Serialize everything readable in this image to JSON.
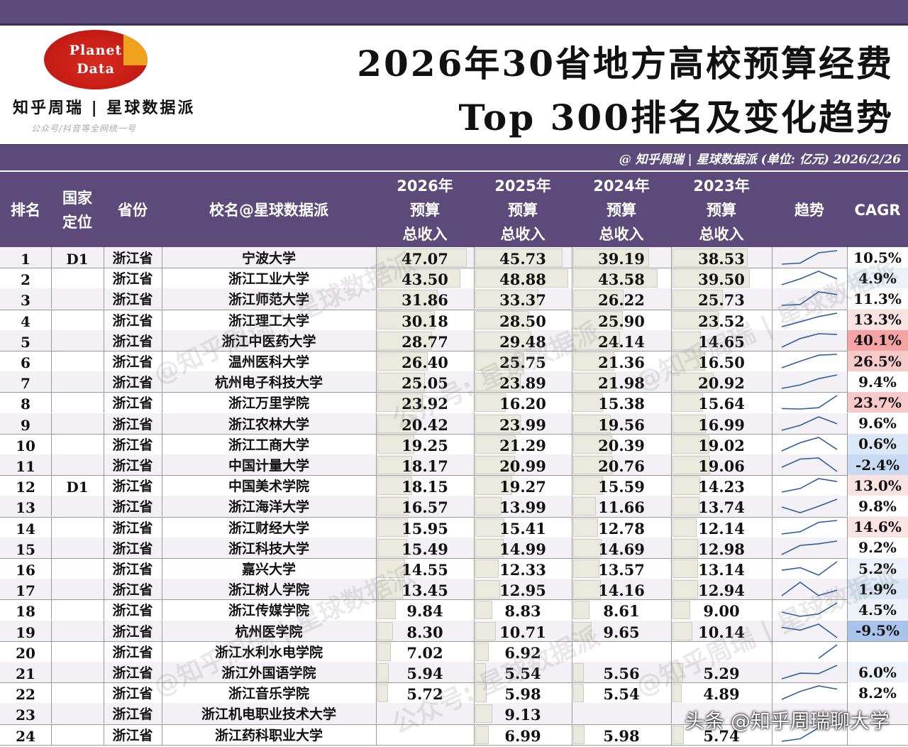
{
  "logo": {
    "line1": "Planet",
    "line2": "Data",
    "brand": "知乎周瑞 | 星球数据派",
    "brand_sub": "公众号/抖音等全网统一号"
  },
  "title": {
    "line1": "2026年30省地方高校预算经费",
    "line2": "Top 300排名及变化趋势"
  },
  "credit": "@ 知乎周瑞 | 星球数据派 (单位: 亿元) 2026/2/26",
  "headers": {
    "rank": "排名",
    "positioning": "国家\n定位",
    "province": "省份",
    "school": "校名@星球数据派",
    "y2026": "2026年\n预算\n总收入",
    "y2025": "2025年\n预算\n总收入",
    "y2024": "2024年\n预算\n总收入",
    "y2023": "2023年\n预算\n总收入",
    "trend": "趋势",
    "cagr": "CAGR"
  },
  "colors": {
    "header_bg": "#5b4a7a",
    "bar_fill": "#ebeadf",
    "spark_line": "#2f5f9e",
    "cagr_positive_strong": "#f7a6a6",
    "cagr_negative": "#a9c4ea"
  },
  "rows": [
    {
      "rank": "1",
      "pos": "D1",
      "prov": "浙江省",
      "school": "宁波大学",
      "v2026": "47.07",
      "v2025": "45.73",
      "v2024": "39.19",
      "v2023": "38.53",
      "cagr": "10.5%"
    },
    {
      "rank": "2",
      "pos": "",
      "prov": "浙江省",
      "school": "浙江工业大学",
      "v2026": "43.50",
      "v2025": "48.88",
      "v2024": "43.58",
      "v2023": "39.50",
      "cagr": "4.9%"
    },
    {
      "rank": "3",
      "pos": "",
      "prov": "浙江省",
      "school": "浙江师范大学",
      "v2026": "31.86",
      "v2025": "33.37",
      "v2024": "26.22",
      "v2023": "25.73",
      "cagr": "11.3%"
    },
    {
      "rank": "4",
      "pos": "",
      "prov": "浙江省",
      "school": "浙江理工大学",
      "v2026": "30.18",
      "v2025": "28.50",
      "v2024": "25.90",
      "v2023": "23.52",
      "cagr": "13.3%"
    },
    {
      "rank": "5",
      "pos": "",
      "prov": "浙江省",
      "school": "浙江中医药大学",
      "v2026": "28.77",
      "v2025": "29.48",
      "v2024": "24.14",
      "v2023": "14.65",
      "cagr": "40.1%"
    },
    {
      "rank": "6",
      "pos": "",
      "prov": "浙江省",
      "school": "温州医科大学",
      "v2026": "26.40",
      "v2025": "25.75",
      "v2024": "21.36",
      "v2023": "16.50",
      "cagr": "26.5%"
    },
    {
      "rank": "7",
      "pos": "",
      "prov": "浙江省",
      "school": "杭州电子科技大学",
      "v2026": "25.05",
      "v2025": "23.89",
      "v2024": "21.98",
      "v2023": "20.92",
      "cagr": "9.4%"
    },
    {
      "rank": "8",
      "pos": "",
      "prov": "浙江省",
      "school": "浙江万里学院",
      "v2026": "23.92",
      "v2025": "16.20",
      "v2024": "15.38",
      "v2023": "15.64",
      "cagr": "23.7%"
    },
    {
      "rank": "9",
      "pos": "",
      "prov": "浙江省",
      "school": "浙江农林大学",
      "v2026": "20.42",
      "v2025": "23.99",
      "v2024": "19.56",
      "v2023": "16.99",
      "cagr": "9.6%"
    },
    {
      "rank": "10",
      "pos": "",
      "prov": "浙江省",
      "school": "浙江工商大学",
      "v2026": "19.25",
      "v2025": "21.29",
      "v2024": "20.39",
      "v2023": "19.02",
      "cagr": "0.6%"
    },
    {
      "rank": "11",
      "pos": "",
      "prov": "浙江省",
      "school": "中国计量大学",
      "v2026": "18.17",
      "v2025": "20.99",
      "v2024": "20.76",
      "v2023": "19.06",
      "cagr": "-2.4%"
    },
    {
      "rank": "12",
      "pos": "D1",
      "prov": "浙江省",
      "school": "中国美术学院",
      "v2026": "18.15",
      "v2025": "19.27",
      "v2024": "15.59",
      "v2023": "14.23",
      "cagr": "13.0%"
    },
    {
      "rank": "13",
      "pos": "",
      "prov": "浙江省",
      "school": "浙江海洋大学",
      "v2026": "16.57",
      "v2025": "13.99",
      "v2024": "11.66",
      "v2023": "13.74",
      "cagr": "9.8%"
    },
    {
      "rank": "14",
      "pos": "",
      "prov": "浙江省",
      "school": "浙江财经大学",
      "v2026": "15.95",
      "v2025": "15.41",
      "v2024": "12.78",
      "v2023": "12.14",
      "cagr": "14.6%"
    },
    {
      "rank": "15",
      "pos": "",
      "prov": "浙江省",
      "school": "浙江科技大学",
      "v2026": "15.49",
      "v2025": "14.99",
      "v2024": "14.69",
      "v2023": "12.98",
      "cagr": "9.2%"
    },
    {
      "rank": "16",
      "pos": "",
      "prov": "浙江省",
      "school": "嘉兴大学",
      "v2026": "14.55",
      "v2025": "12.33",
      "v2024": "13.57",
      "v2023": "13.14",
      "cagr": "5.2%"
    },
    {
      "rank": "17",
      "pos": "",
      "prov": "浙江省",
      "school": "浙江树人学院",
      "v2026": "13.45",
      "v2025": "12.95",
      "v2024": "14.16",
      "v2023": "12.94",
      "cagr": "1.9%"
    },
    {
      "rank": "18",
      "pos": "",
      "prov": "浙江省",
      "school": "浙江传媒学院",
      "v2026": "9.84",
      "v2025": "8.83",
      "v2024": "8.61",
      "v2023": "9.00",
      "cagr": "4.5%"
    },
    {
      "rank": "19",
      "pos": "",
      "prov": "浙江省",
      "school": "杭州医学院",
      "v2026": "8.30",
      "v2025": "10.71",
      "v2024": "9.65",
      "v2023": "10.14",
      "cagr": "-9.5%"
    },
    {
      "rank": "20",
      "pos": "",
      "prov": "浙江省",
      "school": "浙江水利水电学院",
      "v2026": "7.02",
      "v2025": "6.92",
      "v2024": "",
      "v2023": "",
      "cagr": ""
    },
    {
      "rank": "21",
      "pos": "",
      "prov": "浙江省",
      "school": "浙江外国语学院",
      "v2026": "5.94",
      "v2025": "5.54",
      "v2024": "5.56",
      "v2023": "5.29",
      "cagr": "6.0%"
    },
    {
      "rank": "22",
      "pos": "",
      "prov": "浙江省",
      "school": "浙江音乐学院",
      "v2026": "5.72",
      "v2025": "5.98",
      "v2024": "5.54",
      "v2023": "4.89",
      "cagr": "8.2%"
    },
    {
      "rank": "23",
      "pos": "",
      "prov": "浙江省",
      "school": "浙江机电职业技术大学",
      "v2026": "",
      "v2025": "9.13",
      "v2024": "",
      "v2023": "",
      "cagr": ""
    },
    {
      "rank": "24",
      "pos": "",
      "prov": "浙江省",
      "school": "浙江药科职业大学",
      "v2026": "",
      "v2025": "6.99",
      "v2024": "5.98",
      "v2023": "5.74",
      "cagr": ""
    }
  ],
  "watermark": {
    "text1": "@知乎周瑞 | 星球数据派",
    "text2": "公众号: 星球数据派"
  },
  "toutiao": "头条 @知乎周瑞聊大学"
}
